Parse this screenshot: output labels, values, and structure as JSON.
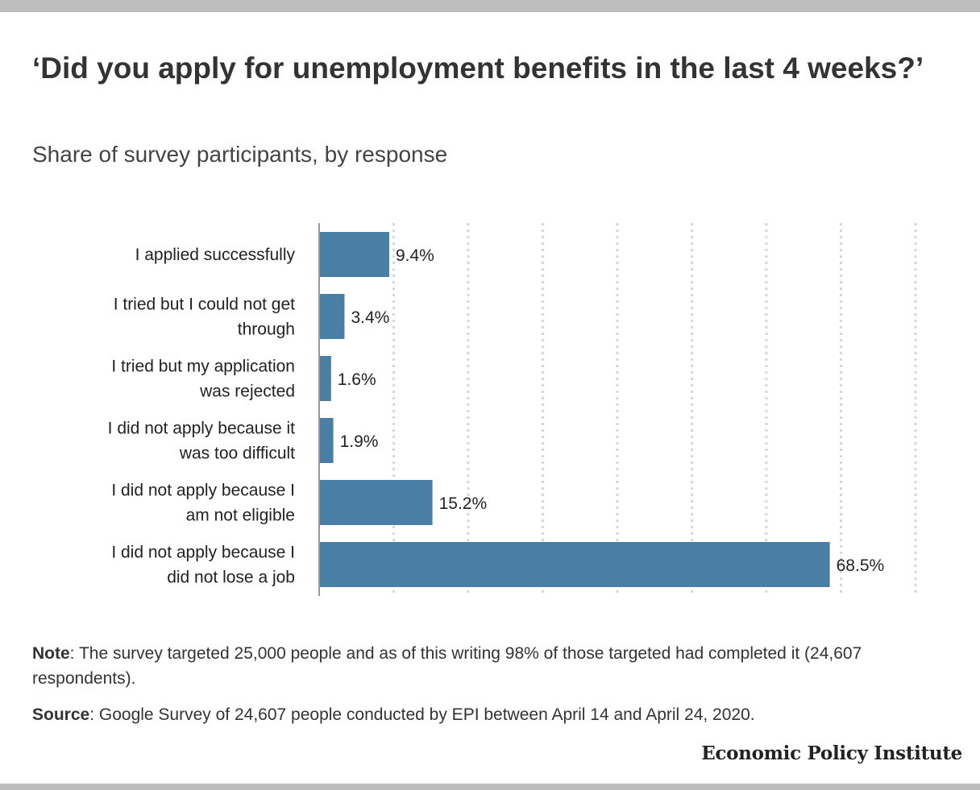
{
  "chart_data": {
    "type": "bar",
    "orientation": "horizontal",
    "title": "‘Did you apply for unemployment benefits in the last 4 weeks?’",
    "subtitle": "Share of survey participants, by response",
    "categories": [
      [
        "I applied successfully"
      ],
      [
        "I tried but I could not get",
        "through"
      ],
      [
        "I tried but my application",
        "was rejected"
      ],
      [
        "I did not apply because it",
        "was too difficult"
      ],
      [
        "I did not apply because I",
        "am not eligible"
      ],
      [
        "I did not apply because I",
        "did not lose a job"
      ]
    ],
    "values": [
      9.4,
      3.4,
      1.6,
      1.9,
      15.2,
      68.5
    ],
    "value_labels": [
      "9.4%",
      "3.4%",
      "1.6%",
      "1.9%",
      "15.2%",
      "68.5%"
    ],
    "xlim": [
      0,
      80
    ],
    "grid": true,
    "bar_color": "#4a7fa5"
  },
  "footer": {
    "note_label": "Note",
    "note_text": ": The survey targeted 25,000 people and as of this writing 98% of those targeted had completed it (24,607 respondents).",
    "source_label": "Source",
    "source_text": ": Google Survey of 24,607 people conducted by EPI between April 14 and April 24, 2020.",
    "brand": "Economic Policy Institute"
  }
}
